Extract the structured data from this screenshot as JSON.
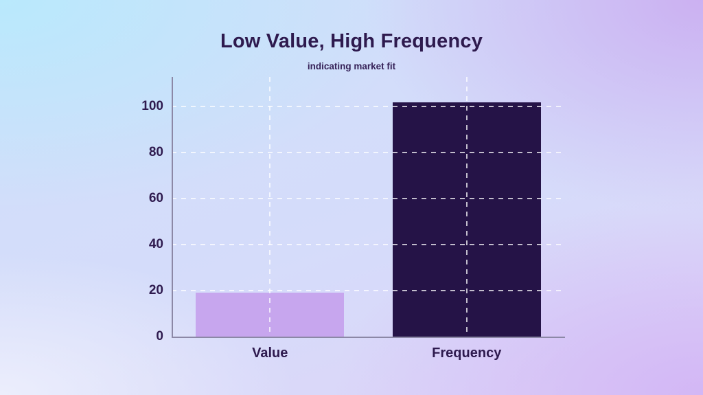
{
  "header": {
    "title": "Low Value, High Frequency",
    "subtitle": "indicating market fit"
  },
  "chart_data": {
    "type": "bar",
    "categories": [
      "Value",
      "Frequency"
    ],
    "values": [
      19,
      102
    ],
    "title": "Low Value, High Frequency",
    "subtitle": "indicating market fit",
    "xlabel": "",
    "ylabel": "",
    "y_ticks": [
      0,
      20,
      40,
      60,
      80,
      100
    ],
    "ylim": [
      0,
      113
    ],
    "grid": "dashed white gridlines drawn above bars; horizontal at each y tick, vertical at each category center",
    "legend_position": "none",
    "bar_colors": [
      "#c7a6ee",
      "#251347"
    ]
  },
  "colors": {
    "title_text": "#2e1a4e",
    "subtitle_text": "#362258",
    "tick_text": "#2e1a4e",
    "bar_value": "#c7a6ee",
    "bar_frequency": "#251347",
    "axis_line": "#8c88a6",
    "gridline": "rgba(255,255,255,0.72)",
    "bg_top_left": "#b9e9fc",
    "bg_top_right": "#ccb1f1",
    "bg_bottom_left": "#ecEEfc",
    "bg_bottom_right": "#d2b5f5"
  }
}
